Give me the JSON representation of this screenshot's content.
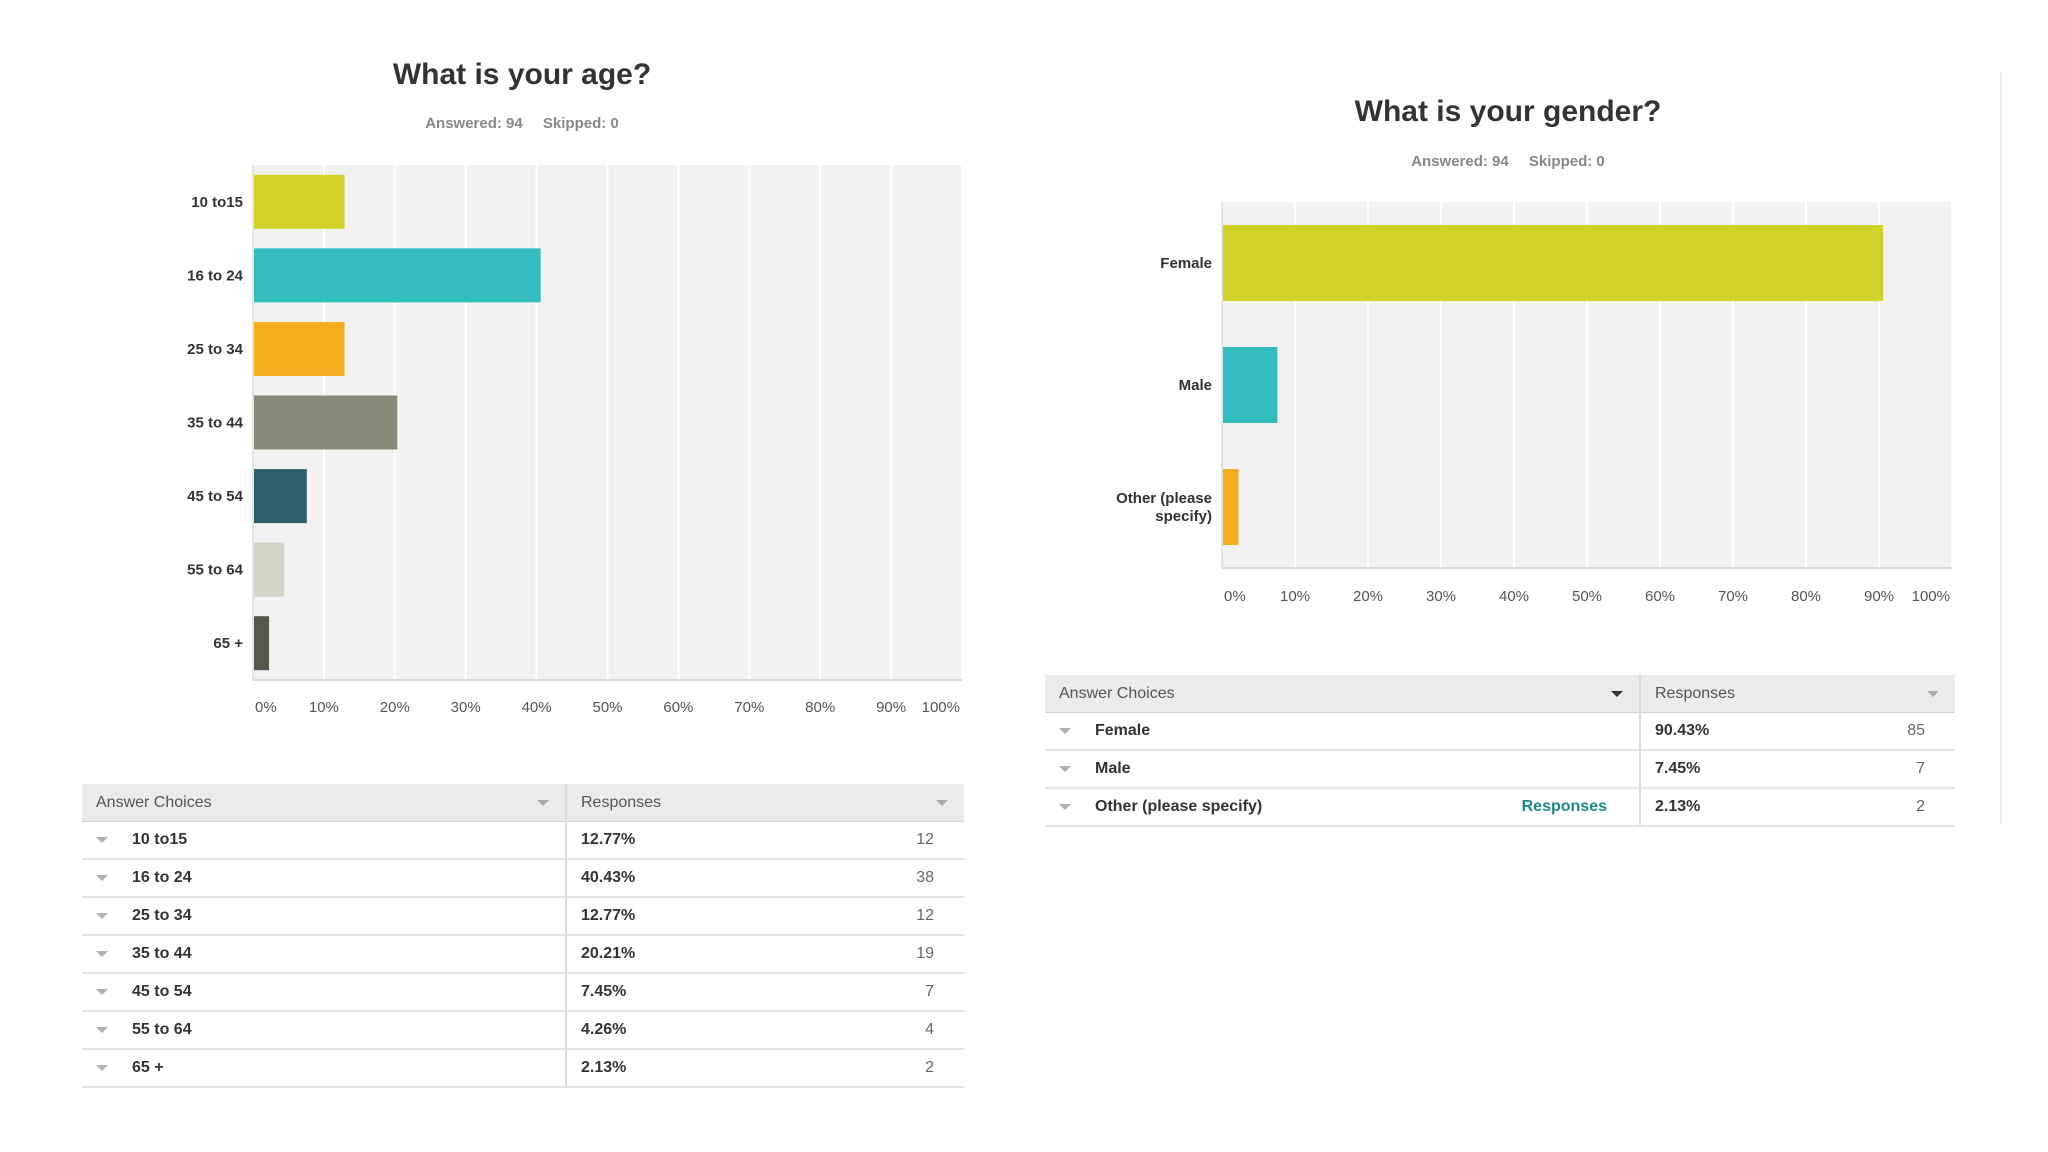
{
  "age": {
    "title": "What is your age?",
    "answered": "Answered: 94",
    "skipped": "Skipped: 0",
    "table": {
      "col_choice": "Answer Choices",
      "col_responses": "Responses",
      "rows": [
        {
          "choice": "10 to15",
          "pct": "12.77%",
          "count": "12"
        },
        {
          "choice": "16 to 24",
          "pct": "40.43%",
          "count": "38"
        },
        {
          "choice": "25 to 34",
          "pct": "12.77%",
          "count": "12"
        },
        {
          "choice": "35 to 44",
          "pct": "20.21%",
          "count": "19"
        },
        {
          "choice": "45 to 54",
          "pct": "7.45%",
          "count": "7"
        },
        {
          "choice": "55 to 64",
          "pct": "4.26%",
          "count": "4"
        },
        {
          "choice": "65 +",
          "pct": "2.13%",
          "count": "2"
        }
      ]
    }
  },
  "gender": {
    "title": "What is your gender?",
    "answered": "Answered: 94",
    "skipped": "Skipped: 0",
    "table": {
      "col_choice": "Answer Choices",
      "col_responses": "Responses",
      "link_label": "Responses",
      "rows": [
        {
          "choice": "Female",
          "pct": "90.43%",
          "count": "85"
        },
        {
          "choice": "Male",
          "pct": "7.45%",
          "count": "7"
        },
        {
          "choice": "Other (please specify)",
          "pct": "2.13%",
          "count": "2"
        }
      ]
    }
  },
  "chart_data": [
    {
      "type": "bar",
      "orientation": "horizontal",
      "title": "What is your age?",
      "categories": [
        "10 to15",
        "16 to 24",
        "25 to 34",
        "35 to 44",
        "45 to 54",
        "55 to 64",
        "65 +"
      ],
      "values": [
        12.77,
        40.43,
        12.77,
        20.21,
        7.45,
        4.26,
        2.13
      ],
      "colors": [
        "#d0d22a",
        "#33bdbf",
        "#f5ad1f",
        "#8a8a78",
        "#2e5f6e",
        "#d4d4c6",
        "#55574a"
      ],
      "xlim": [
        0,
        100
      ],
      "xticks": [
        "0%",
        "10%",
        "20%",
        "30%",
        "40%",
        "50%",
        "60%",
        "70%",
        "80%",
        "90%",
        "100%"
      ],
      "grid": true
    },
    {
      "type": "bar",
      "orientation": "horizontal",
      "title": "What is your gender?",
      "categories": [
        "Female",
        "Male",
        "Other (please specify)"
      ],
      "category_lines": [
        [
          "Female"
        ],
        [
          "Male"
        ],
        [
          "Other (please",
          "specify)"
        ]
      ],
      "values": [
        90.43,
        7.45,
        2.13
      ],
      "colors": [
        "#d0d22a",
        "#33bdbf",
        "#f5ad1f"
      ],
      "xlim": [
        0,
        100
      ],
      "xticks": [
        "0%",
        "10%",
        "20%",
        "30%",
        "40%",
        "50%",
        "60%",
        "70%",
        "80%",
        "90%",
        "100%"
      ],
      "grid": true
    }
  ]
}
